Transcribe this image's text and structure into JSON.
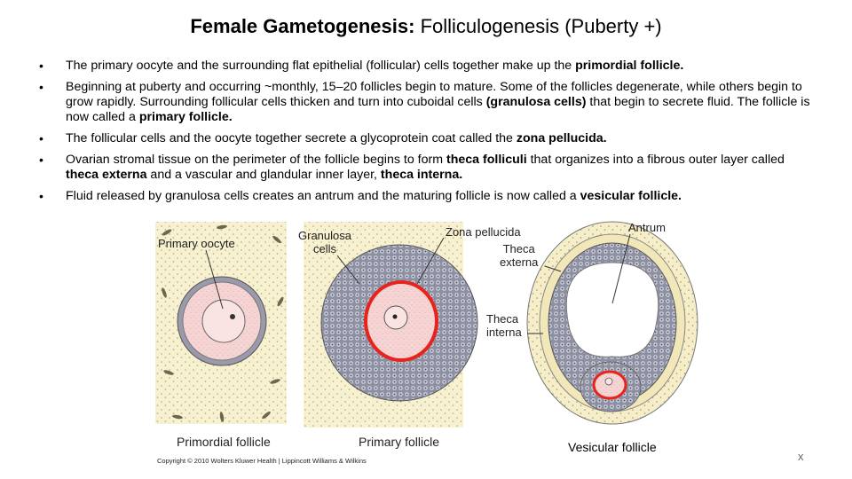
{
  "title": {
    "bold": "Female Gametogenesis:",
    "rest": " Folliculogenesis (Puberty +)"
  },
  "bullets": [
    {
      "parts": [
        {
          "t": "The primary oocyte and the surrounding flat epithelial (follicular) cells together make up the ",
          "b": false
        },
        {
          "t": "primordial follicle.",
          "b": true
        }
      ]
    },
    {
      "parts": [
        {
          "t": "Beginning at puberty and occurring  ~monthly, 15–20 follicles begin to mature. Some of the follicles degenerate, while others begin to grow rapidly. Surrounding follicular cells thicken and turn into cuboidal cells ",
          "b": false
        },
        {
          "t": "(granulosa cells)",
          "b": true
        },
        {
          "t": " that begin to secrete fluid. The follicle is now called a ",
          "b": false
        },
        {
          "t": "primary follicle.",
          "b": true
        }
      ]
    },
    {
      "parts": [
        {
          "t": "The follicular cells and the oocyte together secrete a glycoprotein coat called the ",
          "b": false
        },
        {
          "t": "zona pellucida.",
          "b": true
        }
      ]
    },
    {
      "parts": [
        {
          "t": "Ovarian stromal tissue on the perimeter of the follicle begins to form ",
          "b": false
        },
        {
          "t": "theca folliculi",
          "b": true
        },
        {
          "t": " that organizes into a fibrous outer layer called ",
          "b": false
        },
        {
          "t": "theca externa",
          "b": true
        },
        {
          "t": " and a vascular and glandular inner layer, ",
          "b": false
        },
        {
          "t": "theca interna.",
          "b": true
        }
      ]
    },
    {
      "parts": [
        {
          "t": "Fluid released by granulosa cells creates an antrum and the maturing follicle is now called a ",
          "b": false
        },
        {
          "t": "vesicular follicle.",
          "b": true
        }
      ]
    }
  ],
  "figure": {
    "labels": {
      "primary_oocyte": "Primary oocyte",
      "granulosa_line1": "Granulosa",
      "granulosa_line2": "cells",
      "zona_pellucida": "Zona pellucida",
      "antrum": "Antrum",
      "theca_externa_line1": "Theca",
      "theca_externa_line2": "externa",
      "theca_interna_line1": "Theca",
      "theca_interna_line2": "interna"
    },
    "captions": {
      "primordial": "Primordial follicle",
      "primary": "Primary follicle",
      "vesicular": "Vesicular follicle"
    },
    "colors": {
      "cytoplasm": "#f7d4d4",
      "granulosa": "#8c8fa0",
      "stroma": "#f4edc4",
      "zona": "#e8231c"
    }
  },
  "copyright": "Copyright © 2010 Wolters Kluwer Health | Lippincott Williams & Wilkins",
  "close_mark": "x"
}
